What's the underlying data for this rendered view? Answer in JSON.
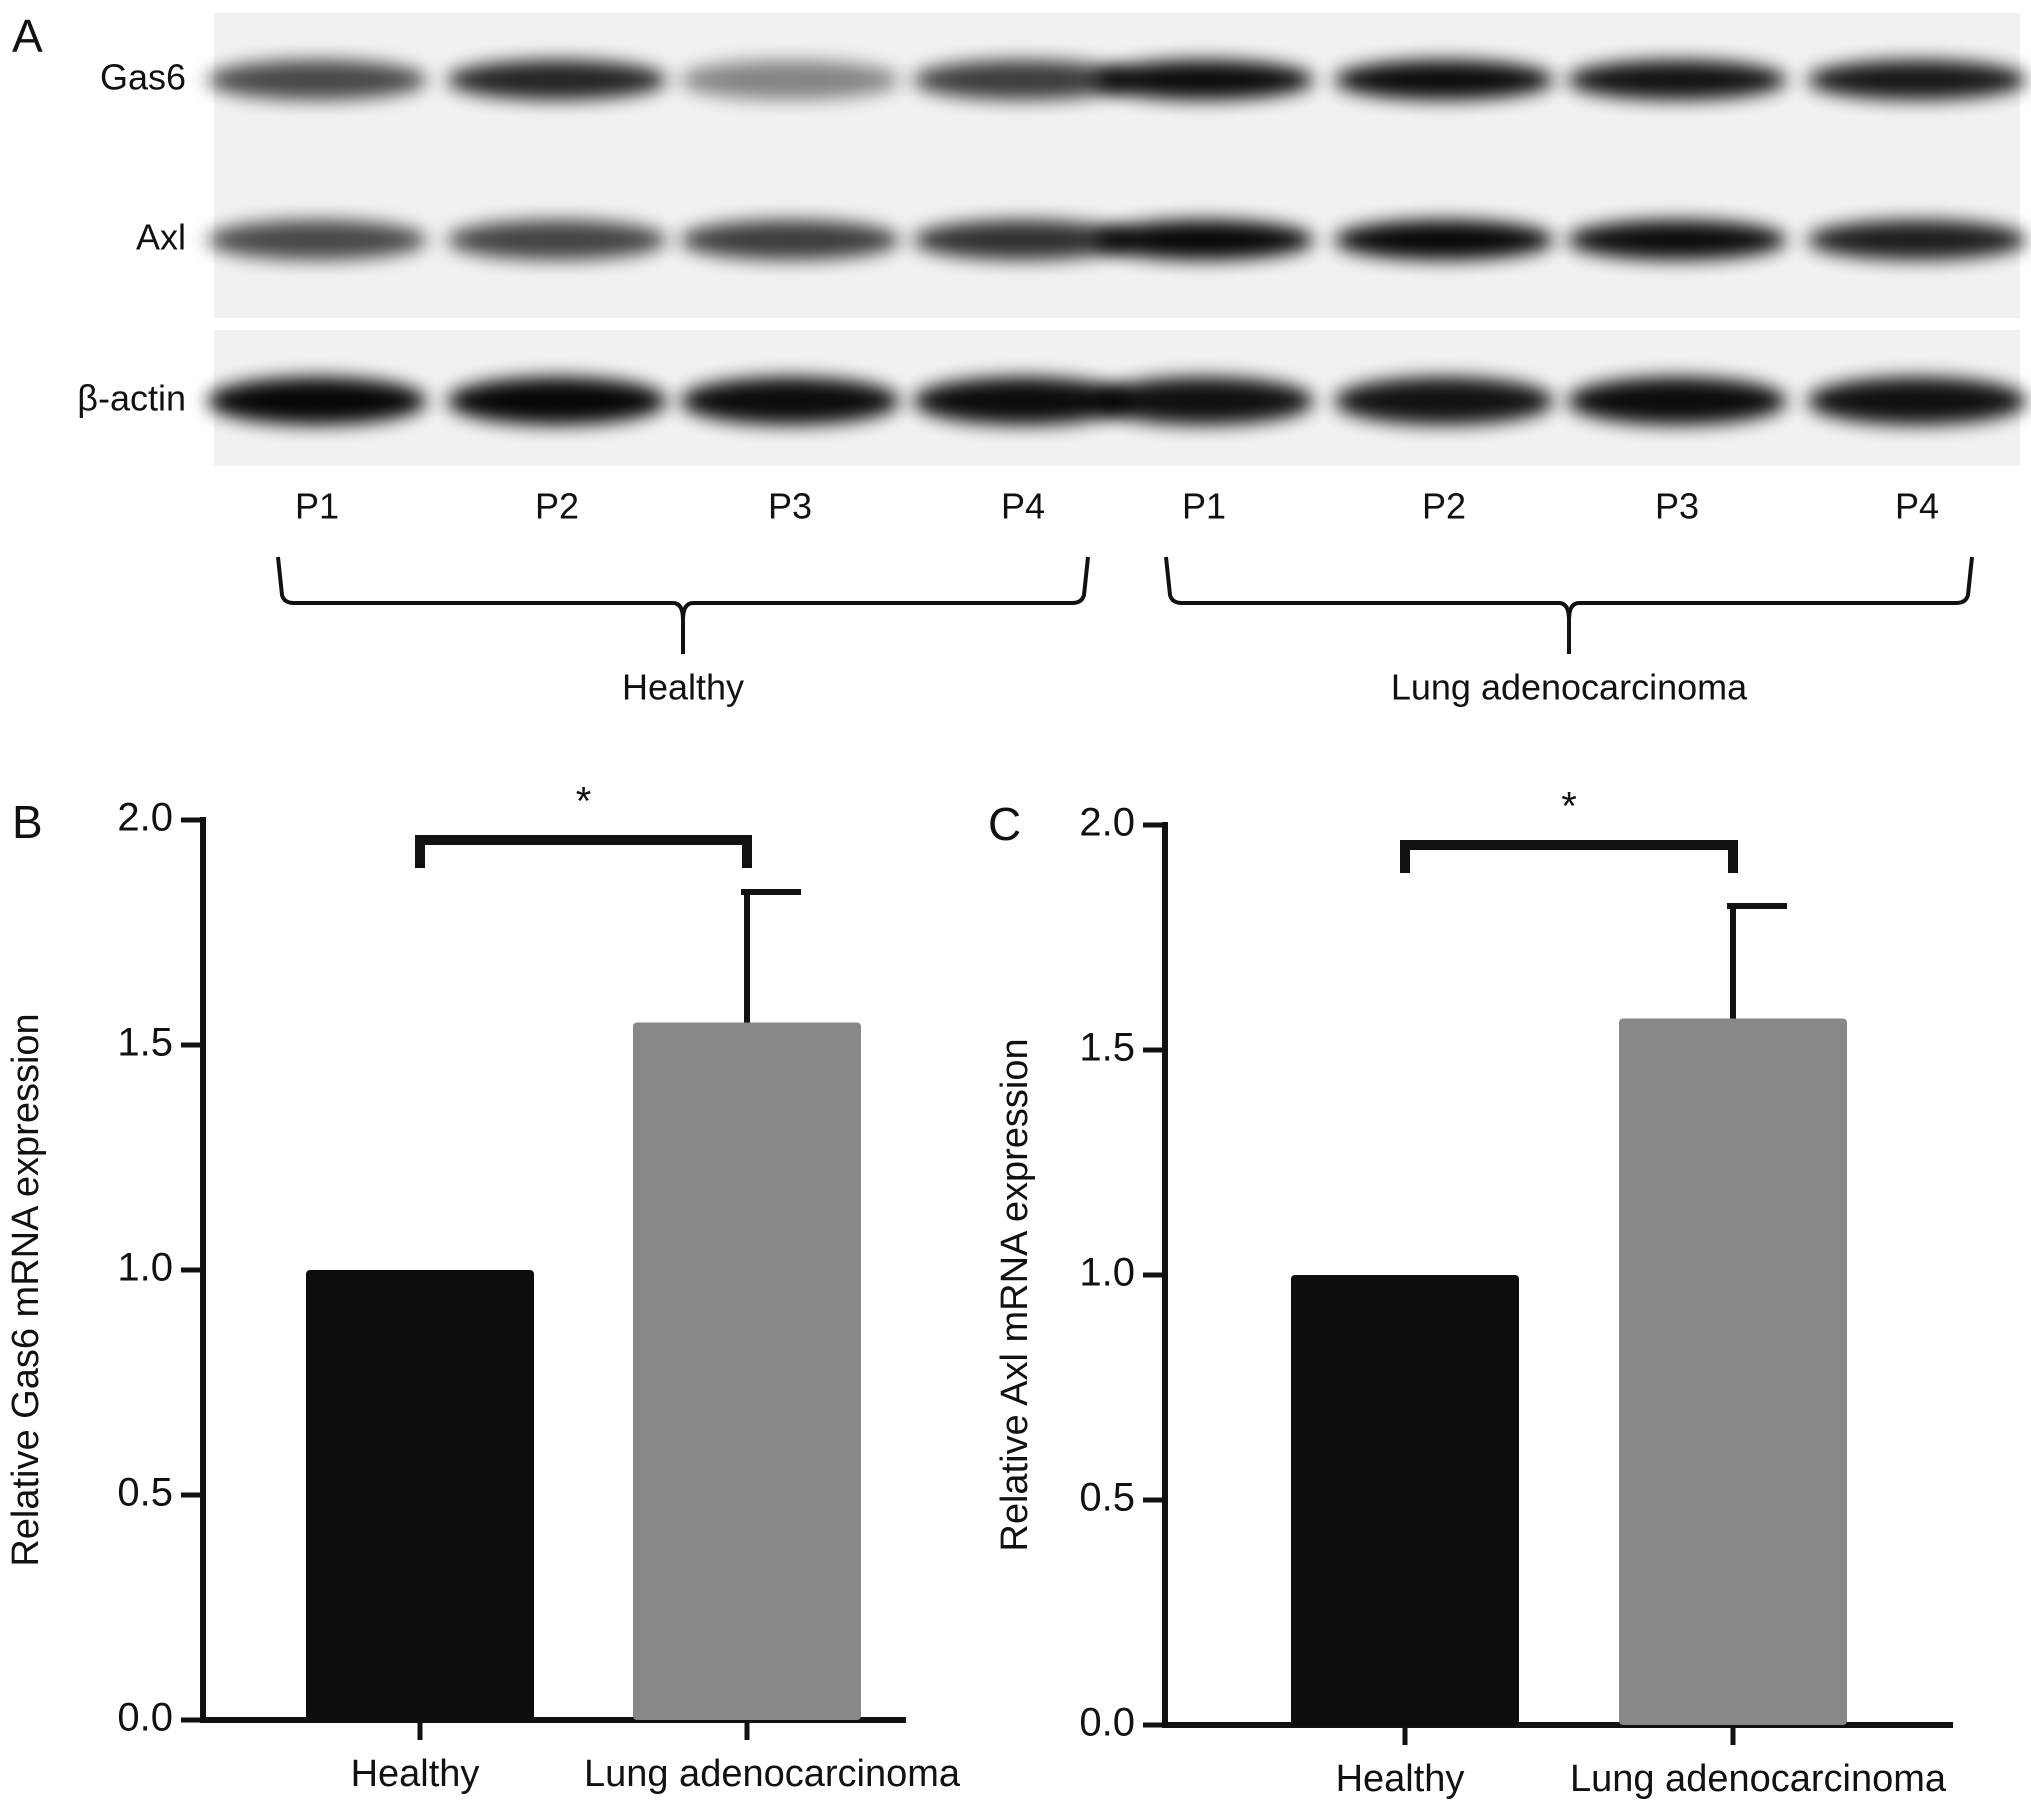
{
  "blot": {
    "panel_label": "A",
    "rows": [
      "Gas6",
      "Axl",
      "β-actin"
    ],
    "lanes": [
      "P1",
      "P2",
      "P3",
      "P4",
      "P1",
      "P2",
      "P3",
      "P4"
    ],
    "groups": [
      "Healthy",
      "Lung adenocarcinoma"
    ]
  },
  "chart_data": [
    {
      "type": "bar",
      "panel_label": "B",
      "y_label": "Relative Gas6 mRNA expression",
      "categories": [
        "Healthy",
        "Lung adenocarcinoma"
      ],
      "values": [
        1.0,
        1.55
      ],
      "errors": [
        null,
        0.29
      ],
      "colors": [
        "#0d0d0d",
        "#888888"
      ],
      "ylim": [
        0,
        2
      ],
      "yticks": [
        {
          "value": 0,
          "label": "0.0"
        },
        0.5,
        {
          "value": 1,
          "label": "1.0"
        },
        1.5,
        {
          "value": 2,
          "label": "2.0"
        }
      ],
      "significance": "*"
    },
    {
      "type": "bar",
      "panel_label": "C",
      "y_label": "Relative Axl mRNA expression",
      "categories": [
        "Healthy",
        "Lung adenocarcinoma"
      ],
      "values": [
        1.0,
        1.57
      ],
      "errors": [
        null,
        0.25
      ],
      "colors": [
        "#0d0d0d",
        "#888888"
      ],
      "ylim": [
        0,
        2
      ],
      "yticks": [
        {
          "value": 0,
          "label": "0.0"
        },
        0.5,
        {
          "value": 1,
          "label": "1.0"
        },
        1.5,
        {
          "value": 2,
          "label": "2.0"
        }
      ],
      "significance": "*"
    }
  ]
}
